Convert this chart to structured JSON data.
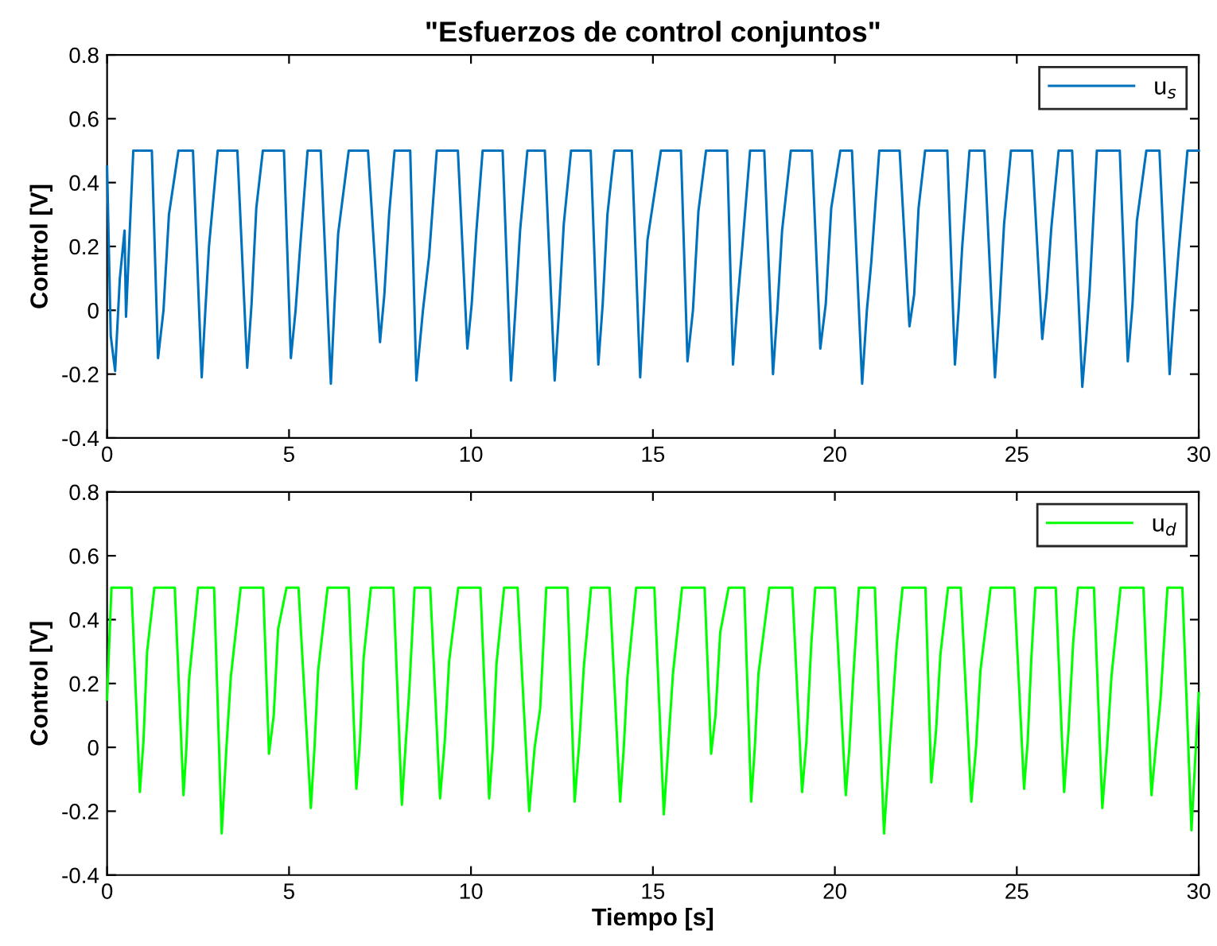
{
  "chart_data": [
    {
      "type": "line",
      "title": "\"Esfuerzos de control conjuntos\"",
      "ylabel": "Control [V]",
      "xlim": [
        0,
        30
      ],
      "xticks": [
        0,
        5,
        10,
        15,
        20,
        25,
        30
      ],
      "ylim": [
        -0.4,
        0.8
      ],
      "yticks": [
        -0.4,
        -0.2,
        0,
        0.2,
        0.4,
        0.6,
        0.8
      ],
      "grid": false,
      "legend": "top right",
      "series": [
        {
          "name": "u$_{s}$",
          "color": "#0072bd",
          "x": [
            0,
            0.1,
            0.22,
            0.35,
            0.48,
            0.52,
            0.65,
            0.72,
            1.23,
            1.4,
            1.55,
            1.7,
            1.96,
            2.36,
            2.6,
            2.7,
            2.8,
            3.04,
            3.58,
            3.85,
            3.97,
            4.1,
            4.28,
            4.86,
            5.05,
            5.18,
            5.3,
            5.51,
            5.87,
            6.15,
            6.25,
            6.35,
            6.64,
            7.17,
            7.5,
            7.62,
            7.75,
            7.9,
            8.33,
            8.5,
            8.68,
            8.85,
            9.06,
            9.64,
            9.9,
            10.02,
            10.15,
            10.32,
            10.87,
            11.1,
            11.22,
            11.35,
            11.55,
            12.03,
            12.3,
            12.42,
            12.55,
            12.75,
            13.29,
            13.5,
            13.62,
            13.75,
            13.94,
            14.42,
            14.65,
            14.75,
            14.85,
            15.22,
            15.77,
            15.95,
            16.1,
            16.25,
            16.46,
            17.04,
            17.2,
            17.32,
            17.45,
            17.67,
            18.06,
            18.3,
            18.42,
            18.55,
            18.79,
            19.37,
            19.6,
            19.75,
            19.9,
            20.15,
            20.47,
            20.75,
            20.88,
            21.0,
            21.22,
            21.78,
            22.05,
            22.18,
            22.3,
            22.48,
            23.09,
            23.3,
            23.4,
            23.5,
            23.7,
            24.11,
            24.4,
            24.52,
            24.65,
            24.84,
            25.42,
            25.7,
            25.82,
            25.95,
            26.15,
            26.52,
            26.8,
            26.9,
            27.0,
            27.2,
            27.83,
            28.05,
            28.18,
            28.3,
            28.56,
            28.92,
            29.2,
            29.32,
            29.45,
            29.69,
            30
          ],
          "values": [
            0.45,
            -0.08,
            -0.19,
            0.1,
            0.25,
            -0.02,
            0.32,
            0.5,
            0.5,
            -0.15,
            0.0,
            0.3,
            0.5,
            0.5,
            -0.21,
            0.0,
            0.2,
            0.5,
            0.5,
            -0.18,
            0.02,
            0.32,
            0.5,
            0.5,
            -0.15,
            0.0,
            0.19,
            0.5,
            0.5,
            -0.23,
            0.02,
            0.24,
            0.5,
            0.5,
            -0.1,
            0.05,
            0.3,
            0.5,
            0.5,
            -0.22,
            0.0,
            0.17,
            0.5,
            0.5,
            -0.12,
            0.02,
            0.25,
            0.5,
            0.5,
            -0.22,
            0.0,
            0.25,
            0.5,
            0.5,
            -0.22,
            0.0,
            0.27,
            0.5,
            0.5,
            -0.17,
            0.02,
            0.3,
            0.5,
            0.5,
            -0.21,
            0.0,
            0.22,
            0.5,
            0.5,
            -0.16,
            0.0,
            0.31,
            0.5,
            0.5,
            -0.17,
            0.02,
            0.19,
            0.5,
            0.5,
            -0.2,
            0.0,
            0.25,
            0.5,
            0.5,
            -0.12,
            0.02,
            0.32,
            0.5,
            0.5,
            -0.23,
            0.0,
            0.15,
            0.5,
            0.5,
            -0.05,
            0.05,
            0.32,
            0.5,
            0.5,
            -0.17,
            0.0,
            0.2,
            0.5,
            0.5,
            -0.21,
            0.0,
            0.27,
            0.5,
            0.5,
            -0.09,
            0.05,
            0.26,
            0.5,
            0.5,
            -0.24,
            -0.1,
            0.06,
            0.5,
            0.5,
            -0.16,
            0.02,
            0.28,
            0.5,
            0.5,
            -0.2,
            0.0,
            0.19,
            0.5,
            0.5
          ]
        }
      ]
    },
    {
      "type": "line",
      "xlabel": "Tiempo [s]",
      "ylabel": "Control [V]",
      "xlim": [
        0,
        30
      ],
      "xticks": [
        0,
        5,
        10,
        15,
        20,
        25,
        30
      ],
      "ylim": [
        -0.4,
        0.8
      ],
      "yticks": [
        -0.4,
        -0.2,
        0,
        0.2,
        0.4,
        0.6,
        0.8
      ],
      "grid": false,
      "legend": "top right",
      "series": [
        {
          "name": "u$_{d}$",
          "color": "#00ff00",
          "x": [
            0,
            0.05,
            0.12,
            0.67,
            0.9,
            1.0,
            1.1,
            1.3,
            1.86,
            2.1,
            2.18,
            2.25,
            2.5,
            2.94,
            3.15,
            3.28,
            3.4,
            3.67,
            4.29,
            4.45,
            4.58,
            4.7,
            4.93,
            5.26,
            5.6,
            5.7,
            5.8,
            6.06,
            6.64,
            6.85,
            6.95,
            7.05,
            7.25,
            7.87,
            8.1,
            8.2,
            8.3,
            8.45,
            8.88,
            9.15,
            9.28,
            9.4,
            9.65,
            10.26,
            10.5,
            10.6,
            10.7,
            10.91,
            11.28,
            11.6,
            11.75,
            11.9,
            12.07,
            12.65,
            12.85,
            12.98,
            13.1,
            13.3,
            13.81,
            14.1,
            14.2,
            14.3,
            14.54,
            15.04,
            15.3,
            15.42,
            15.55,
            15.8,
            16.42,
            16.6,
            16.72,
            16.85,
            17.08,
            17.51,
            17.7,
            17.8,
            17.9,
            18.2,
            18.83,
            19.1,
            19.22,
            19.35,
            19.46,
            20.0,
            20.3,
            20.4,
            20.5,
            20.66,
            21.1,
            21.35,
            21.52,
            21.7,
            21.86,
            22.49,
            22.65,
            22.78,
            22.9,
            23.11,
            23.46,
            23.75,
            23.88,
            24.0,
            24.28,
            24.93,
            25.2,
            25.3,
            25.4,
            25.51,
            26.07,
            26.3,
            26.42,
            26.55,
            26.68,
            27.12,
            27.35,
            27.48,
            27.6,
            27.85,
            28.48,
            28.7,
            28.82,
            28.95,
            29.14,
            29.55,
            29.8,
            30
          ],
          "values": [
            0.15,
            0.3,
            0.5,
            0.5,
            -0.14,
            0.02,
            0.3,
            0.5,
            0.5,
            -0.15,
            0.0,
            0.21,
            0.5,
            0.5,
            -0.27,
            0.0,
            0.22,
            0.5,
            0.5,
            -0.02,
            0.1,
            0.37,
            0.5,
            0.5,
            -0.19,
            0.0,
            0.24,
            0.5,
            0.5,
            -0.13,
            0.02,
            0.28,
            0.5,
            0.5,
            -0.18,
            0.0,
            0.17,
            0.5,
            0.5,
            -0.16,
            0.02,
            0.27,
            0.5,
            0.5,
            -0.16,
            0.0,
            0.26,
            0.5,
            0.5,
            -0.2,
            0.0,
            0.12,
            0.5,
            0.5,
            -0.17,
            0.02,
            0.25,
            0.5,
            0.5,
            -0.17,
            0.0,
            0.22,
            0.5,
            0.5,
            -0.21,
            0.0,
            0.23,
            0.5,
            0.5,
            -0.02,
            0.1,
            0.36,
            0.5,
            0.5,
            -0.17,
            0.0,
            0.23,
            0.5,
            0.5,
            -0.14,
            0.02,
            0.32,
            0.5,
            0.5,
            -0.15,
            0.0,
            0.21,
            0.5,
            0.5,
            -0.27,
            0.02,
            0.32,
            0.5,
            0.5,
            -0.11,
            0.05,
            0.29,
            0.5,
            0.5,
            -0.17,
            0.0,
            0.24,
            0.5,
            0.5,
            -0.13,
            0.02,
            0.28,
            0.5,
            0.5,
            -0.14,
            0.05,
            0.33,
            0.5,
            0.5,
            -0.19,
            0.0,
            0.22,
            0.5,
            0.5,
            -0.15,
            0.0,
            0.15,
            0.5,
            0.5,
            -0.26,
            0.17
          ]
        }
      ]
    }
  ]
}
